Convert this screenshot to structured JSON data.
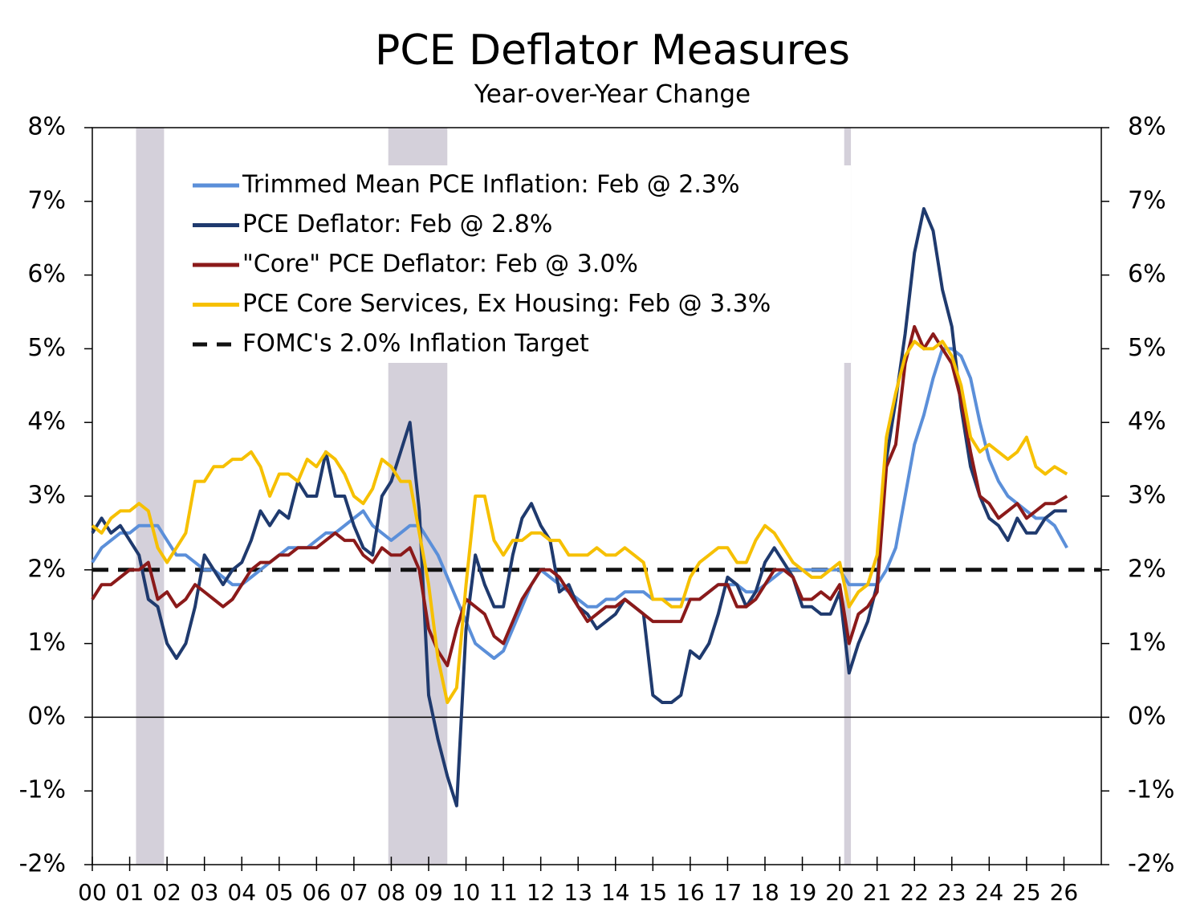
{
  "chart_data": {
    "type": "line",
    "title": "PCE Deflator Measures",
    "subtitle": "Year-over-Year Change",
    "xlim": [
      2000,
      2027
    ],
    "xticks": [
      {
        "value": 2000,
        "label": "00"
      },
      {
        "value": 2001,
        "label": "01"
      },
      {
        "value": 2002,
        "label": "02"
      },
      {
        "value": 2003,
        "label": "03"
      },
      {
        "value": 2004,
        "label": "04"
      },
      {
        "value": 2005,
        "label": "05"
      },
      {
        "value": 2006,
        "label": "06"
      },
      {
        "value": 2007,
        "label": "07"
      },
      {
        "value": 2008,
        "label": "08"
      },
      {
        "value": 2009,
        "label": "09"
      },
      {
        "value": 2010,
        "label": "10"
      },
      {
        "value": 2011,
        "label": "11"
      },
      {
        "value": 2012,
        "label": "12"
      },
      {
        "value": 2013,
        "label": "13"
      },
      {
        "value": 2014,
        "label": "14"
      },
      {
        "value": 2015,
        "label": "15"
      },
      {
        "value": 2016,
        "label": "16"
      },
      {
        "value": 2017,
        "label": "17"
      },
      {
        "value": 2018,
        "label": "18"
      },
      {
        "value": 2019,
        "label": "19"
      },
      {
        "value": 2020,
        "label": "20"
      },
      {
        "value": 2021,
        "label": "21"
      },
      {
        "value": 2022,
        "label": "22"
      },
      {
        "value": 2023,
        "label": "23"
      },
      {
        "value": 2024,
        "label": "24"
      },
      {
        "value": 2025,
        "label": "25"
      },
      {
        "value": 2026,
        "label": "26"
      }
    ],
    "ylim": [
      -2,
      8
    ],
    "yticks": [
      {
        "value": -2,
        "label": "-2%"
      },
      {
        "value": -1,
        "label": "-1%"
      },
      {
        "value": 0,
        "label": "0%"
      },
      {
        "value": 1,
        "label": "1%"
      },
      {
        "value": 2,
        "label": "2%"
      },
      {
        "value": 3,
        "label": "3%"
      },
      {
        "value": 4,
        "label": "4%"
      },
      {
        "value": 5,
        "label": "5%"
      },
      {
        "value": 6,
        "label": "6%"
      },
      {
        "value": 7,
        "label": "7%"
      },
      {
        "value": 8,
        "label": "8%"
      }
    ],
    "y2lim": [
      -2,
      8
    ],
    "y2ticks": [
      {
        "value": -2,
        "label": "-2%"
      },
      {
        "value": -1,
        "label": "-1%"
      },
      {
        "value": 0,
        "label": "0%"
      },
      {
        "value": 1,
        "label": "1%"
      },
      {
        "value": 2,
        "label": "2%"
      },
      {
        "value": 3,
        "label": "3%"
      },
      {
        "value": 4,
        "label": "4%"
      },
      {
        "value": 5,
        "label": "5%"
      },
      {
        "value": 6,
        "label": "6%"
      },
      {
        "value": 7,
        "label": "7%"
      },
      {
        "value": 8,
        "label": "8%"
      }
    ],
    "recessions": [
      [
        2001.17,
        2001.92
      ],
      [
        2007.92,
        2009.5
      ],
      [
        2020.12,
        2020.3
      ]
    ],
    "recession_color": "#d4d0da",
    "x": [
      2000,
      2000.25,
      2000.5,
      2000.75,
      2001,
      2001.25,
      2001.5,
      2001.75,
      2002,
      2002.25,
      2002.5,
      2002.75,
      2003,
      2003.25,
      2003.5,
      2003.75,
      2004,
      2004.25,
      2004.5,
      2004.75,
      2005,
      2005.25,
      2005.5,
      2005.75,
      2006,
      2006.25,
      2006.5,
      2006.75,
      2007,
      2007.25,
      2007.5,
      2007.75,
      2008,
      2008.25,
      2008.5,
      2008.75,
      2009,
      2009.25,
      2009.5,
      2009.75,
      2010,
      2010.25,
      2010.5,
      2010.75,
      2011,
      2011.25,
      2011.5,
      2011.75,
      2012,
      2012.25,
      2012.5,
      2012.75,
      2013,
      2013.25,
      2013.5,
      2013.75,
      2014,
      2014.25,
      2014.5,
      2014.75,
      2015,
      2015.25,
      2015.5,
      2015.75,
      2016,
      2016.25,
      2016.5,
      2016.75,
      2017,
      2017.25,
      2017.5,
      2017.75,
      2018,
      2018.25,
      2018.5,
      2018.75,
      2019,
      2019.25,
      2019.5,
      2019.75,
      2020,
      2020.25,
      2020.5,
      2020.75,
      2021,
      2021.25,
      2021.5,
      2021.75,
      2022,
      2022.25,
      2022.5,
      2022.75,
      2023,
      2023.25,
      2023.5,
      2023.75,
      2024,
      2024.25,
      2024.5,
      2024.75,
      2025,
      2025.25,
      2025.5,
      2025.75,
      2026.08
    ],
    "series": [
      {
        "name": "Trimmed Mean PCE Inflation: Feb @ 2.3%",
        "color": "#5b8fd9",
        "values": [
          2.1,
          2.3,
          2.4,
          2.5,
          2.5,
          2.6,
          2.6,
          2.6,
          2.4,
          2.2,
          2.2,
          2.1,
          2.0,
          2.0,
          1.9,
          1.8,
          1.8,
          1.9,
          2.0,
          2.1,
          2.2,
          2.3,
          2.3,
          2.3,
          2.4,
          2.5,
          2.5,
          2.6,
          2.7,
          2.8,
          2.6,
          2.5,
          2.4,
          2.5,
          2.6,
          2.6,
          2.4,
          2.2,
          1.9,
          1.6,
          1.3,
          1.0,
          0.9,
          0.8,
          0.9,
          1.2,
          1.5,
          1.8,
          2.0,
          1.9,
          1.8,
          1.7,
          1.6,
          1.5,
          1.5,
          1.6,
          1.6,
          1.7,
          1.7,
          1.7,
          1.6,
          1.6,
          1.6,
          1.6,
          1.6,
          1.6,
          1.7,
          1.8,
          1.8,
          1.8,
          1.7,
          1.7,
          1.8,
          1.9,
          2.0,
          2.0,
          2.0,
          2.0,
          2.0,
          2.0,
          2.0,
          1.8,
          1.8,
          1.8,
          1.8,
          2.0,
          2.3,
          3.0,
          3.7,
          4.1,
          4.6,
          5.0,
          5.0,
          4.9,
          4.6,
          4.0,
          3.5,
          3.2,
          3.0,
          2.9,
          2.8,
          2.7,
          2.7,
          2.6,
          2.3
        ]
      },
      {
        "name": "PCE Deflator: Feb @ 2.8%",
        "color": "#1f3a6e",
        "values": [
          2.5,
          2.7,
          2.5,
          2.6,
          2.4,
          2.2,
          1.6,
          1.5,
          1.0,
          0.8,
          1.0,
          1.5,
          2.2,
          2.0,
          1.8,
          2.0,
          2.1,
          2.4,
          2.8,
          2.6,
          2.8,
          2.7,
          3.2,
          3.0,
          3.0,
          3.6,
          3.0,
          3.0,
          2.6,
          2.3,
          2.2,
          3.0,
          3.2,
          3.6,
          4.0,
          2.8,
          0.3,
          -0.3,
          -0.8,
          -1.2,
          1.2,
          2.2,
          1.8,
          1.5,
          1.5,
          2.2,
          2.7,
          2.9,
          2.6,
          2.4,
          1.7,
          1.8,
          1.5,
          1.4,
          1.2,
          1.3,
          1.4,
          1.6,
          1.5,
          1.4,
          0.3,
          0.2,
          0.2,
          0.3,
          0.9,
          0.8,
          1.0,
          1.4,
          1.9,
          1.8,
          1.5,
          1.7,
          2.1,
          2.3,
          2.1,
          1.9,
          1.5,
          1.5,
          1.4,
          1.4,
          1.7,
          0.6,
          1.0,
          1.3,
          1.8,
          3.5,
          4.3,
          5.2,
          6.3,
          6.9,
          6.6,
          5.8,
          5.3,
          4.2,
          3.4,
          3.0,
          2.7,
          2.6,
          2.4,
          2.7,
          2.5,
          2.5,
          2.7,
          2.8,
          2.8
        ]
      },
      {
        "name": "\"Core\" PCE Deflator: Feb @ 3.0%",
        "color": "#8b1a1a",
        "values": [
          1.6,
          1.8,
          1.8,
          1.9,
          2.0,
          2.0,
          2.1,
          1.6,
          1.7,
          1.5,
          1.6,
          1.8,
          1.7,
          1.6,
          1.5,
          1.6,
          1.8,
          2.0,
          2.1,
          2.1,
          2.2,
          2.2,
          2.3,
          2.3,
          2.3,
          2.4,
          2.5,
          2.4,
          2.4,
          2.2,
          2.1,
          2.3,
          2.2,
          2.2,
          2.3,
          2.0,
          1.2,
          0.9,
          0.7,
          1.2,
          1.6,
          1.5,
          1.4,
          1.1,
          1.0,
          1.3,
          1.6,
          1.8,
          2.0,
          2.0,
          1.9,
          1.7,
          1.5,
          1.3,
          1.4,
          1.5,
          1.5,
          1.6,
          1.5,
          1.4,
          1.3,
          1.3,
          1.3,
          1.3,
          1.6,
          1.6,
          1.7,
          1.8,
          1.8,
          1.5,
          1.5,
          1.6,
          1.8,
          2.0,
          2.0,
          1.9,
          1.6,
          1.6,
          1.7,
          1.6,
          1.8,
          1.0,
          1.4,
          1.5,
          1.7,
          3.4,
          3.7,
          4.8,
          5.3,
          5.0,
          5.2,
          5.0,
          4.8,
          4.3,
          3.6,
          3.0,
          2.9,
          2.7,
          2.8,
          2.9,
          2.7,
          2.8,
          2.9,
          2.9,
          3.0
        ]
      },
      {
        "name": "PCE Core Services, Ex Housing: Feb @ 3.3%",
        "color": "#f6c000",
        "values": [
          2.6,
          2.5,
          2.7,
          2.8,
          2.8,
          2.9,
          2.8,
          2.3,
          2.1,
          2.3,
          2.5,
          3.2,
          3.2,
          3.4,
          3.4,
          3.5,
          3.5,
          3.6,
          3.4,
          3.0,
          3.3,
          3.3,
          3.2,
          3.5,
          3.4,
          3.6,
          3.5,
          3.3,
          3.0,
          2.9,
          3.1,
          3.5,
          3.4,
          3.2,
          3.2,
          2.5,
          1.8,
          0.8,
          0.2,
          0.4,
          1.8,
          3.0,
          3.0,
          2.4,
          2.2,
          2.4,
          2.4,
          2.5,
          2.5,
          2.4,
          2.4,
          2.2,
          2.2,
          2.2,
          2.3,
          2.2,
          2.2,
          2.3,
          2.2,
          2.1,
          1.6,
          1.6,
          1.5,
          1.5,
          1.9,
          2.1,
          2.2,
          2.3,
          2.3,
          2.1,
          2.1,
          2.4,
          2.6,
          2.5,
          2.3,
          2.1,
          2.0,
          1.9,
          1.9,
          2.0,
          2.1,
          1.5,
          1.7,
          1.8,
          2.2,
          3.8,
          4.4,
          4.9,
          5.1,
          5.0,
          5.0,
          5.1,
          4.9,
          4.5,
          3.8,
          3.6,
          3.7,
          3.6,
          3.5,
          3.6,
          3.8,
          3.4,
          3.3,
          3.4,
          3.3
        ]
      }
    ],
    "hline": {
      "name": "FOMC's 2.0% Inflation Target",
      "value": 2,
      "color": "#111111"
    }
  }
}
